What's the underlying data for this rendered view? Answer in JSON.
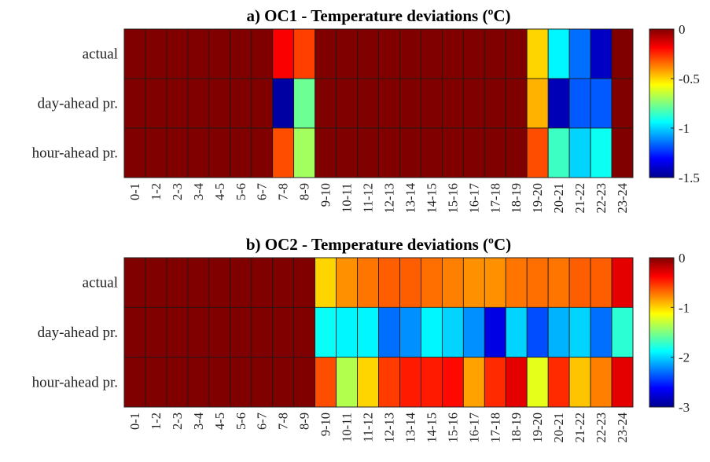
{
  "chart_data": [
    {
      "type": "heatmap",
      "title": "a) OC1 - Temperature deviations (ºC)",
      "rows": [
        "actual",
        "day-ahead pr.",
        "hour-ahead pr."
      ],
      "columns": [
        "0-1",
        "1-2",
        "2-3",
        "3-4",
        "4-5",
        "5-6",
        "6-7",
        "7-8",
        "8-9",
        "9-10",
        "10-11",
        "11-12",
        "12-13",
        "13-14",
        "14-15",
        "15-16",
        "16-17",
        "17-18",
        "18-19",
        "19-20",
        "20-21",
        "21-22",
        "22-23",
        "23-24"
      ],
      "values": [
        [
          0,
          0,
          0,
          0,
          0,
          0,
          0,
          -0.18,
          -0.28,
          0,
          0,
          0,
          0,
          0,
          0,
          0,
          0,
          0,
          0,
          -0.5,
          -0.95,
          -1.15,
          -1.4,
          0
        ],
        [
          0,
          0,
          0,
          0,
          0,
          0,
          0,
          -1.45,
          -0.78,
          0,
          0,
          0,
          0,
          0,
          0,
          0,
          0,
          0,
          0,
          -0.45,
          -1.42,
          -1.18,
          -1.18,
          0
        ],
        [
          0,
          0,
          0,
          0,
          0,
          0,
          0,
          -0.3,
          -0.7,
          0,
          0,
          0,
          0,
          0,
          0,
          0,
          0,
          0,
          0,
          -0.3,
          -0.85,
          -1.0,
          -0.92,
          0
        ]
      ],
      "colorbar": {
        "range": [
          -1.5,
          0
        ],
        "ticks": [
          "0",
          "-0.5",
          "-1",
          "-1.5"
        ]
      }
    },
    {
      "type": "heatmap",
      "title": "b) OC2 - Temperature deviations (ºC)",
      "rows": [
        "actual",
        "day-ahead pr.",
        "hour-ahead pr."
      ],
      "columns": [
        "0-1",
        "1-2",
        "2-3",
        "3-4",
        "4-5",
        "5-6",
        "6-7",
        "7-8",
        "8-9",
        "9-10",
        "10-11",
        "11-12",
        "12-13",
        "13-14",
        "14-15",
        "15-16",
        "16-17",
        "17-18",
        "18-19",
        "19-20",
        "20-21",
        "21-22",
        "22-23",
        "23-24"
      ],
      "values": [
        [
          0,
          0,
          0,
          0,
          0,
          0,
          0,
          0,
          0,
          -1.0,
          -0.8,
          -0.72,
          -0.65,
          -0.65,
          -0.7,
          -0.75,
          -0.8,
          -0.8,
          -0.72,
          -0.7,
          -0.72,
          -0.65,
          -0.65,
          -0.3
        ],
        [
          0,
          0,
          0,
          0,
          0,
          0,
          0,
          0,
          0,
          -1.85,
          -1.9,
          -1.9,
          -2.3,
          -2.2,
          -1.9,
          -2.0,
          -2.2,
          -2.7,
          -2.0,
          -2.4,
          -2.1,
          -2.0,
          -2.3,
          -1.75
        ],
        [
          0,
          0,
          0,
          0,
          0,
          0,
          0,
          0,
          0,
          -0.6,
          -1.35,
          -1.0,
          -0.55,
          -0.45,
          -0.45,
          -0.4,
          -0.85,
          -0.5,
          -0.3,
          -1.2,
          -0.5,
          -0.95,
          -0.75,
          -0.3
        ]
      ],
      "colorbar": {
        "range": [
          -3,
          0
        ],
        "ticks": [
          "0",
          "-1",
          "-2",
          "-3"
        ]
      }
    }
  ]
}
